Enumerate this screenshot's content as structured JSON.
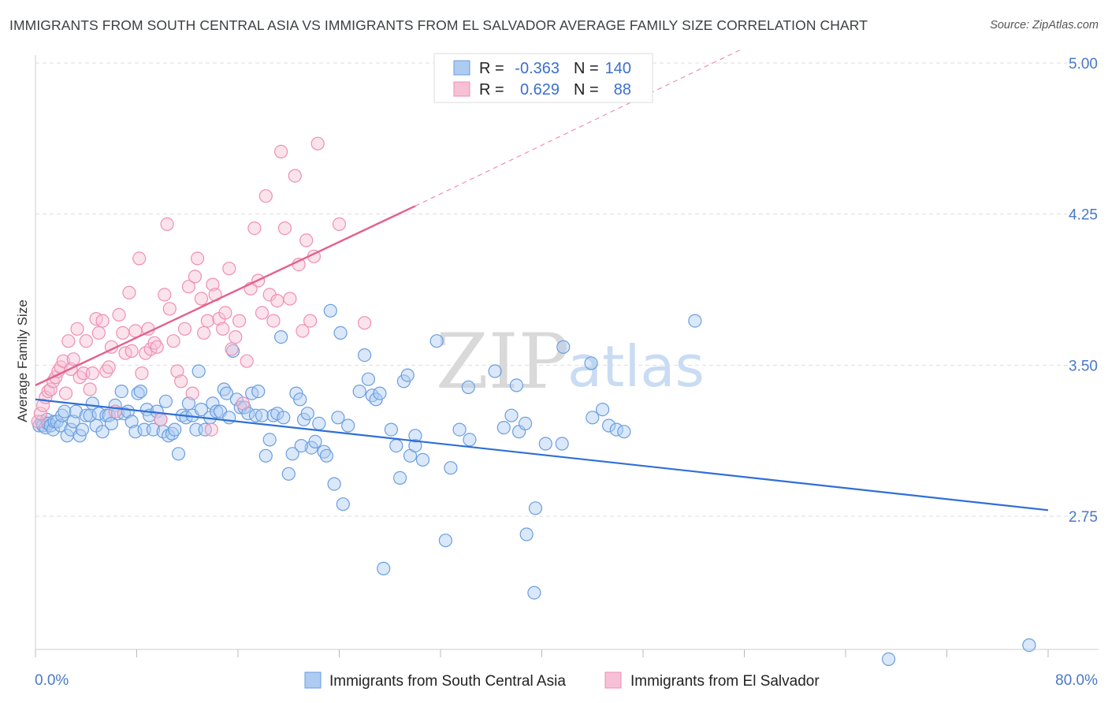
{
  "title": "IMMIGRANTS FROM SOUTH CENTRAL ASIA VS IMMIGRANTS FROM EL SALVADOR AVERAGE FAMILY SIZE CORRELATION CHART",
  "source": "Source: ZipAtlas.com",
  "watermark": {
    "zip": "ZIP",
    "atlas": "atlas"
  },
  "legend": {
    "r_label": "R =",
    "n_label": "N =",
    "rows": [
      {
        "r": "-0.363",
        "n": "140"
      },
      {
        "r": "0.629",
        "n": "88"
      }
    ]
  },
  "colors": {
    "blue": "#6a9ee0",
    "blue_fill": "#aecbf2",
    "blue_line": "#2f6fd6",
    "pink": "#ef8fb1",
    "pink_fill": "#f6c1d4",
    "pink_line": "#e4608c",
    "axis_text": "#4a78c8",
    "grid": "#dddddd"
  },
  "chart_data": {
    "type": "scatter",
    "xlabel": "",
    "ylabel": "Average Family Size",
    "x_range": [
      0,
      80
    ],
    "y_range": [
      2.0,
      5.1
    ],
    "x_tick_labels": [
      "0.0%",
      "80.0%"
    ],
    "y_ticks": [
      2.75,
      3.5,
      4.25,
      5.0
    ],
    "y_tick_labels": [
      "2.75",
      "3.50",
      "4.25",
      "5.00"
    ],
    "grid": true,
    "series": [
      {
        "name": "Immigrants from South Central Asia",
        "color": "blue",
        "trend": {
          "x0": 0,
          "y0": 3.33,
          "x1": 80,
          "y1": 2.78
        },
        "points": [
          [
            0.3,
            3.2
          ],
          [
            0.5,
            3.22
          ],
          [
            0.6,
            3.2
          ],
          [
            0.8,
            3.19
          ],
          [
            0.9,
            3.23
          ],
          [
            1.0,
            3.21
          ],
          [
            1.2,
            3.2
          ],
          [
            1.4,
            3.18
          ],
          [
            1.5,
            3.22
          ],
          [
            1.7,
            3.22
          ],
          [
            2.0,
            3.2
          ],
          [
            2.1,
            3.25
          ],
          [
            2.3,
            3.27
          ],
          [
            2.5,
            3.15
          ],
          [
            2.8,
            3.18
          ],
          [
            3.0,
            3.22
          ],
          [
            3.2,
            3.27
          ],
          [
            3.5,
            3.15
          ],
          [
            3.7,
            3.18
          ],
          [
            4.0,
            3.25
          ],
          [
            4.3,
            3.25
          ],
          [
            4.5,
            3.31
          ],
          [
            4.8,
            3.2
          ],
          [
            5.0,
            3.26
          ],
          [
            5.3,
            3.17
          ],
          [
            5.6,
            3.25
          ],
          [
            5.8,
            3.25
          ],
          [
            6.0,
            3.21
          ],
          [
            6.3,
            3.3
          ],
          [
            6.5,
            3.26
          ],
          [
            6.8,
            3.37
          ],
          [
            7.0,
            3.26
          ],
          [
            7.3,
            3.27
          ],
          [
            7.6,
            3.22
          ],
          [
            7.9,
            3.17
          ],
          [
            8.1,
            3.36
          ],
          [
            8.3,
            3.37
          ],
          [
            8.6,
            3.18
          ],
          [
            8.8,
            3.28
          ],
          [
            9.0,
            3.25
          ],
          [
            9.3,
            3.18
          ],
          [
            9.6,
            3.27
          ],
          [
            9.9,
            3.23
          ],
          [
            10.1,
            3.17
          ],
          [
            10.3,
            3.32
          ],
          [
            10.5,
            3.15
          ],
          [
            10.8,
            3.16
          ],
          [
            11.0,
            3.18
          ],
          [
            11.3,
            3.06
          ],
          [
            11.6,
            3.25
          ],
          [
            11.9,
            3.24
          ],
          [
            12.1,
            3.31
          ],
          [
            12.4,
            3.25
          ],
          [
            12.7,
            3.18
          ],
          [
            12.9,
            3.47
          ],
          [
            13.1,
            3.28
          ],
          [
            13.4,
            3.18
          ],
          [
            13.8,
            3.24
          ],
          [
            14.0,
            3.31
          ],
          [
            14.3,
            3.27
          ],
          [
            14.6,
            3.27
          ],
          [
            14.9,
            3.38
          ],
          [
            15.1,
            3.36
          ],
          [
            15.3,
            3.24
          ],
          [
            15.6,
            3.57
          ],
          [
            15.9,
            3.33
          ],
          [
            16.2,
            3.29
          ],
          [
            16.5,
            3.29
          ],
          [
            16.8,
            3.26
          ],
          [
            17.1,
            3.36
          ],
          [
            17.4,
            3.25
          ],
          [
            17.6,
            3.37
          ],
          [
            17.9,
            3.25
          ],
          [
            18.2,
            3.05
          ],
          [
            18.5,
            3.13
          ],
          [
            18.8,
            3.25
          ],
          [
            19.1,
            3.26
          ],
          [
            19.4,
            3.64
          ],
          [
            19.6,
            3.24
          ],
          [
            20.0,
            2.96
          ],
          [
            20.3,
            3.06
          ],
          [
            20.6,
            3.36
          ],
          [
            20.9,
            3.33
          ],
          [
            21.2,
            3.23
          ],
          [
            21.5,
            3.26
          ],
          [
            21.8,
            3.09
          ],
          [
            22.1,
            3.12
          ],
          [
            22.4,
            3.21
          ],
          [
            22.8,
            3.07
          ],
          [
            23.0,
            3.05
          ],
          [
            23.3,
            3.77
          ],
          [
            23.6,
            2.91
          ],
          [
            23.9,
            3.24
          ],
          [
            24.1,
            3.66
          ],
          [
            24.3,
            2.81
          ],
          [
            24.7,
            3.2
          ],
          [
            25.6,
            3.37
          ],
          [
            26.0,
            3.55
          ],
          [
            26.3,
            3.43
          ],
          [
            26.6,
            3.35
          ],
          [
            26.9,
            3.33
          ],
          [
            27.2,
            3.36
          ],
          [
            28.1,
            3.18
          ],
          [
            28.5,
            3.1
          ],
          [
            28.8,
            2.94
          ],
          [
            29.1,
            3.42
          ],
          [
            29.4,
            3.45
          ],
          [
            29.6,
            3.05
          ],
          [
            30.0,
            3.1
          ],
          [
            30.6,
            3.03
          ],
          [
            31.7,
            3.62
          ],
          [
            32.4,
            2.63
          ],
          [
            32.8,
            2.99
          ],
          [
            34.2,
            3.39
          ],
          [
            34.3,
            3.13
          ],
          [
            36.3,
            3.47
          ],
          [
            37.0,
            3.19
          ],
          [
            38.2,
            3.17
          ],
          [
            38.7,
            3.21
          ],
          [
            39.5,
            2.79
          ],
          [
            40.3,
            3.11
          ],
          [
            41.6,
            3.11
          ],
          [
            41.7,
            3.59
          ],
          [
            43.9,
            3.51
          ],
          [
            44.0,
            3.24
          ],
          [
            44.8,
            3.28
          ],
          [
            45.3,
            3.2
          ],
          [
            45.9,
            3.18
          ],
          [
            46.5,
            3.17
          ],
          [
            52.1,
            3.72
          ],
          [
            37.6,
            3.25
          ],
          [
            38.0,
            3.4
          ],
          [
            38.8,
            2.66
          ],
          [
            39.4,
            2.37
          ],
          [
            30.0,
            3.15
          ],
          [
            27.5,
            2.49
          ],
          [
            33.5,
            3.18
          ],
          [
            21.0,
            3.1
          ],
          [
            67.4,
            2.04
          ],
          [
            78.5,
            2.11
          ]
        ]
      },
      {
        "name": "Immigrants from El Salvador",
        "color": "pink",
        "trend": {
          "x0": 0,
          "y0": 3.4,
          "x1": 30,
          "y1": 4.29,
          "dash_to_x": 80,
          "dash_to_y": 5.8
        },
        "points": [
          [
            0.2,
            3.22
          ],
          [
            0.4,
            3.26
          ],
          [
            0.6,
            3.3
          ],
          [
            0.8,
            3.34
          ],
          [
            1.0,
            3.37
          ],
          [
            1.2,
            3.38
          ],
          [
            1.4,
            3.42
          ],
          [
            1.6,
            3.44
          ],
          [
            1.8,
            3.47
          ],
          [
            2.0,
            3.49
          ],
          [
            2.2,
            3.52
          ],
          [
            2.4,
            3.36
          ],
          [
            2.6,
            3.62
          ],
          [
            2.8,
            3.48
          ],
          [
            3.0,
            3.53
          ],
          [
            3.3,
            3.68
          ],
          [
            3.5,
            3.44
          ],
          [
            3.8,
            3.46
          ],
          [
            4.0,
            3.62
          ],
          [
            4.3,
            3.38
          ],
          [
            4.5,
            3.46
          ],
          [
            4.8,
            3.73
          ],
          [
            5.0,
            3.66
          ],
          [
            5.3,
            3.72
          ],
          [
            5.6,
            3.47
          ],
          [
            5.8,
            3.49
          ],
          [
            6.0,
            3.59
          ],
          [
            6.3,
            3.27
          ],
          [
            6.6,
            3.75
          ],
          [
            6.9,
            3.66
          ],
          [
            7.1,
            3.56
          ],
          [
            7.4,
            3.86
          ],
          [
            7.6,
            3.57
          ],
          [
            7.9,
            3.67
          ],
          [
            8.2,
            4.03
          ],
          [
            8.4,
            3.46
          ],
          [
            8.7,
            3.56
          ],
          [
            8.9,
            3.68
          ],
          [
            9.1,
            3.58
          ],
          [
            9.4,
            3.61
          ],
          [
            9.6,
            3.59
          ],
          [
            9.9,
            3.23
          ],
          [
            10.2,
            3.85
          ],
          [
            10.4,
            4.2
          ],
          [
            10.6,
            3.78
          ],
          [
            10.9,
            3.62
          ],
          [
            11.2,
            3.47
          ],
          [
            11.5,
            3.42
          ],
          [
            11.8,
            3.68
          ],
          [
            12.1,
            3.89
          ],
          [
            12.4,
            3.36
          ],
          [
            12.6,
            3.94
          ],
          [
            12.8,
            4.03
          ],
          [
            13.1,
            3.83
          ],
          [
            13.3,
            3.66
          ],
          [
            13.6,
            3.72
          ],
          [
            13.9,
            3.18
          ],
          [
            14.0,
            3.9
          ],
          [
            14.2,
            3.85
          ],
          [
            14.5,
            3.73
          ],
          [
            14.8,
            3.68
          ],
          [
            15.0,
            3.76
          ],
          [
            15.3,
            3.98
          ],
          [
            15.5,
            3.58
          ],
          [
            15.8,
            3.64
          ],
          [
            16.1,
            3.72
          ],
          [
            16.4,
            3.31
          ],
          [
            16.7,
            3.52
          ],
          [
            17.0,
            3.88
          ],
          [
            17.3,
            4.18
          ],
          [
            17.6,
            3.92
          ],
          [
            17.9,
            3.76
          ],
          [
            18.2,
            4.34
          ],
          [
            18.5,
            3.85
          ],
          [
            18.8,
            3.72
          ],
          [
            19.1,
            3.82
          ],
          [
            19.4,
            4.56
          ],
          [
            19.7,
            4.18
          ],
          [
            20.1,
            3.83
          ],
          [
            20.5,
            4.44
          ],
          [
            20.8,
            4.0
          ],
          [
            21.1,
            3.67
          ],
          [
            21.4,
            4.12
          ],
          [
            21.7,
            3.72
          ],
          [
            22.0,
            4.04
          ],
          [
            22.3,
            4.6
          ],
          [
            24.0,
            4.2
          ],
          [
            26.0,
            3.71
          ]
        ]
      }
    ]
  },
  "bottom_legend": [
    {
      "label": "Immigrants from South Central Asia",
      "color": "blue"
    },
    {
      "label": "Immigrants from El Salvador",
      "color": "pink"
    }
  ]
}
